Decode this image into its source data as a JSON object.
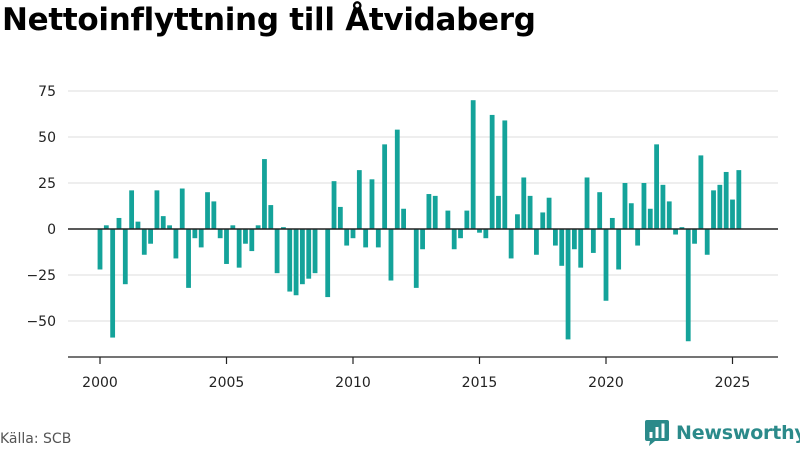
{
  "title": "Nettoinflyttning till Åtvidaberg",
  "source": "Källa: SCB",
  "brand": {
    "name": "Newsworthy",
    "icon": "chart-bubble-icon"
  },
  "colors": {
    "bar": "#14a39a",
    "grid": "#dddddd",
    "axis": "#222222",
    "brand": "#2b8a8a"
  },
  "chart_data": {
    "type": "bar",
    "title": "Nettoinflyttning till Åtvidaberg",
    "xlabel": "",
    "ylabel": "",
    "ylim": [
      -70,
      80
    ],
    "xlim": [
      1999.0,
      2025.9
    ],
    "yticks": [
      -50,
      -25,
      0,
      25,
      50,
      75
    ],
    "xticks": [
      2000,
      2005,
      2010,
      2015,
      2020,
      2025
    ],
    "grid": true,
    "legend": "none",
    "frequency": "quarterly",
    "x_start": "2000 Q1",
    "values": [
      -22,
      2,
      -59,
      6,
      -30,
      21,
      4,
      -14,
      -8,
      21,
      7,
      2,
      -16,
      22,
      -32,
      -5,
      -10,
      20,
      15,
      -5,
      -19,
      2,
      -21,
      -8,
      -12,
      2,
      38,
      13,
      -24,
      1,
      -34,
      -36,
      -30,
      -27,
      -24,
      0,
      -37,
      26,
      12,
      -9,
      -5,
      32,
      -10,
      27,
      -10,
      46,
      -28,
      54,
      11,
      0,
      -32,
      -11,
      19,
      18,
      0,
      10,
      -11,
      -5,
      10,
      70,
      -2,
      -5,
      62,
      18,
      59,
      -16,
      8,
      28,
      18,
      -14,
      9,
      17,
      -9,
      -20,
      -60,
      -11,
      -21,
      28,
      -13,
      20,
      -39,
      6,
      -22,
      25,
      14,
      -9,
      25,
      11,
      46,
      24,
      15,
      -3,
      1,
      -61,
      -8,
      40,
      -14,
      21,
      24,
      31,
      16,
      32
    ]
  }
}
